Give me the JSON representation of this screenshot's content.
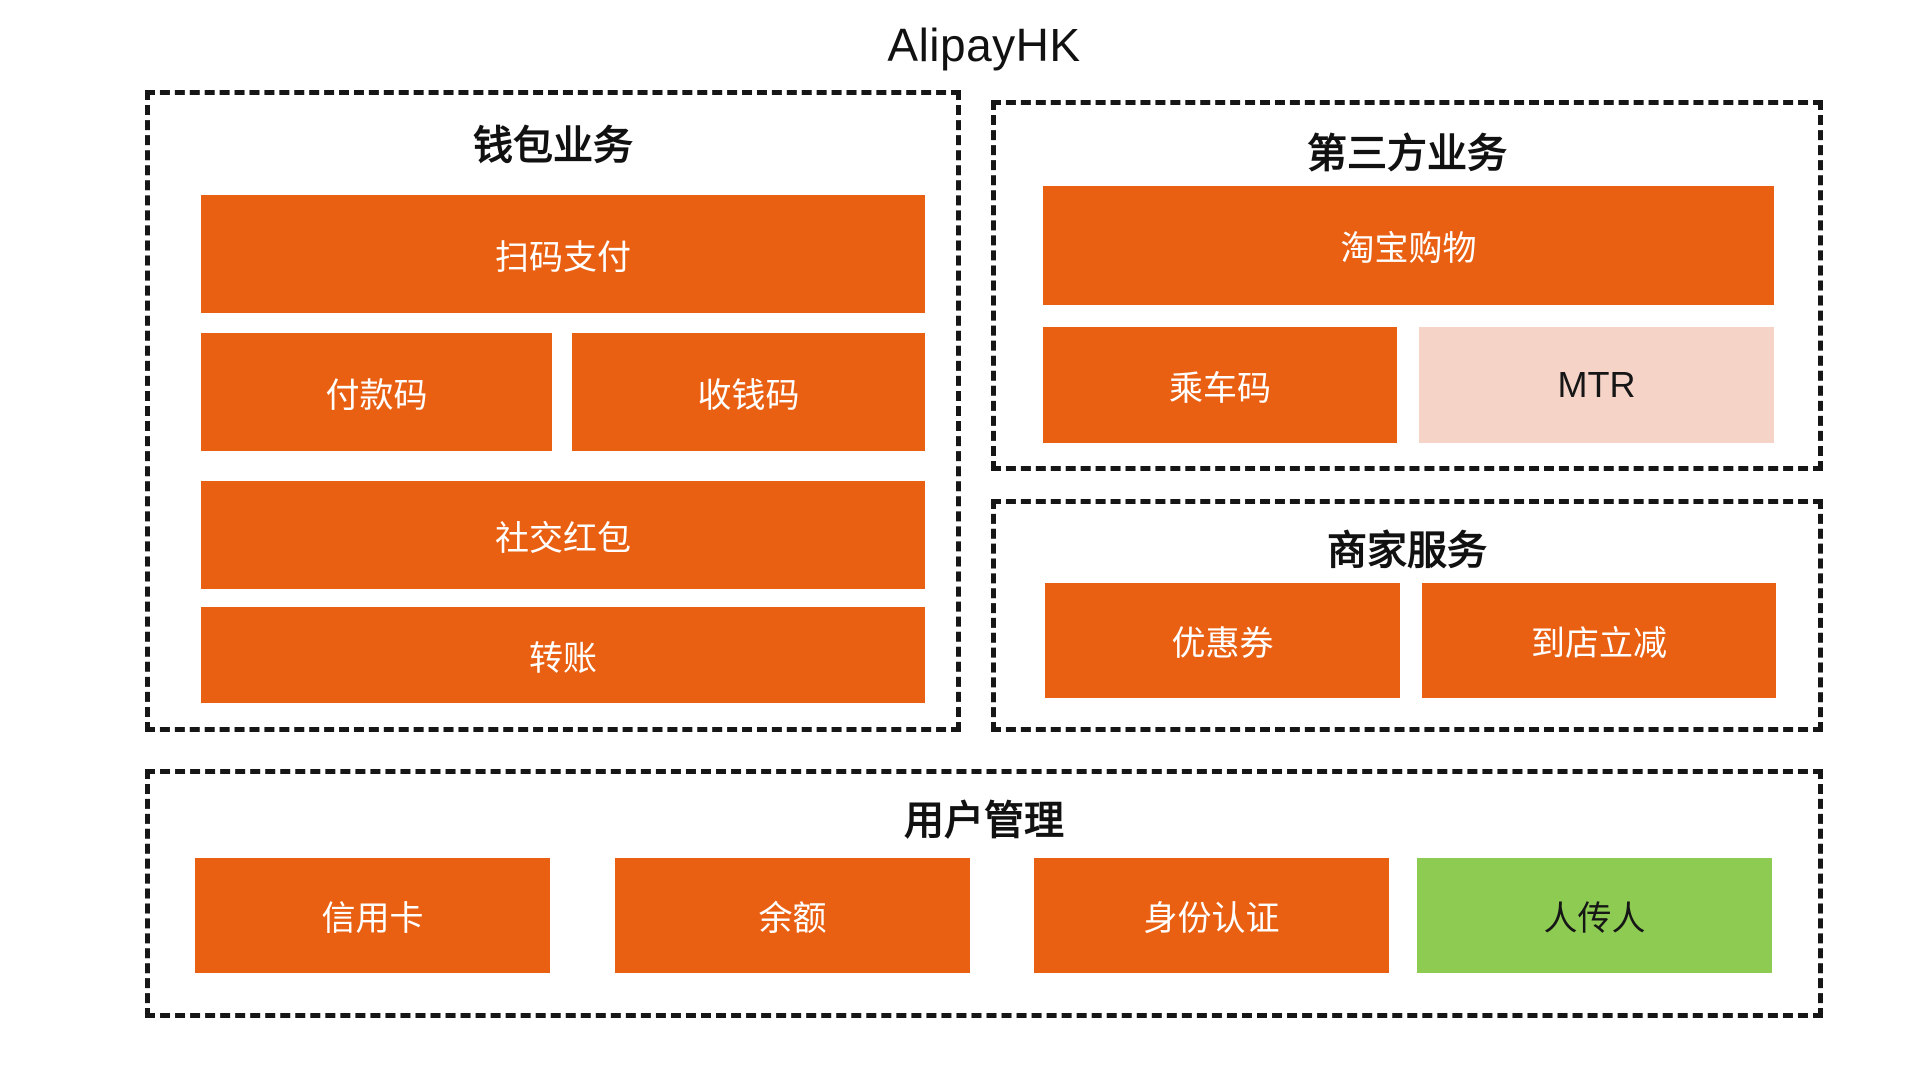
{
  "title": "AlipayHK",
  "colors": {
    "orange": "#E96012",
    "pink": "#F5D3C6",
    "green": "#8DCB53",
    "border": "#161616"
  },
  "sections": {
    "wallet": {
      "title": "钱包业务",
      "items": [
        {
          "label": "扫码支付",
          "color": "orange"
        },
        {
          "label": "付款码",
          "color": "orange"
        },
        {
          "label": "收钱码",
          "color": "orange"
        },
        {
          "label": "社交红包",
          "color": "orange"
        },
        {
          "label": "转账",
          "color": "orange"
        }
      ]
    },
    "third_party": {
      "title": "第三方业务",
      "items": [
        {
          "label": "淘宝购物",
          "color": "orange"
        },
        {
          "label": "乘车码",
          "color": "orange"
        },
        {
          "label": "MTR",
          "color": "pink"
        }
      ]
    },
    "merchant": {
      "title": "商家服务",
      "items": [
        {
          "label": "优惠券",
          "color": "orange"
        },
        {
          "label": "到店立减",
          "color": "orange"
        }
      ]
    },
    "user": {
      "title": "用户管理",
      "items": [
        {
          "label": "信用卡",
          "color": "orange"
        },
        {
          "label": "余额",
          "color": "orange"
        },
        {
          "label": "身份认证",
          "color": "orange"
        },
        {
          "label": "人传人",
          "color": "green"
        }
      ]
    }
  }
}
